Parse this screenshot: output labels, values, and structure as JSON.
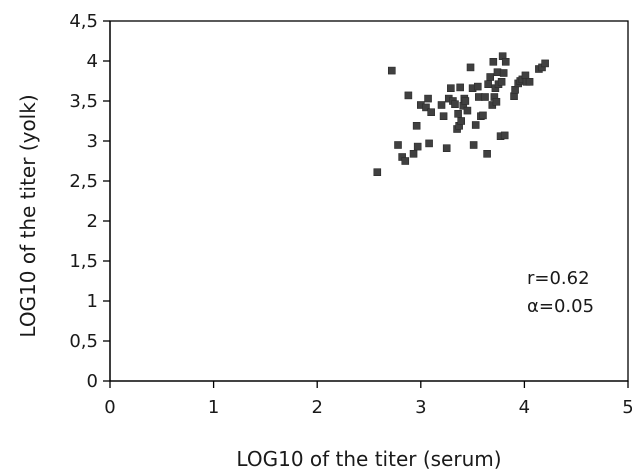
{
  "chart_data": {
    "type": "scatter",
    "title": "",
    "xlabel": "LOG10 of the titer (serum)",
    "ylabel": "LOG10 of the titer (yolk)",
    "xlim": [
      0,
      5
    ],
    "ylim": [
      0,
      4.5
    ],
    "x_ticks": [
      "0",
      "1",
      "2",
      "3",
      "4",
      "5"
    ],
    "y_ticks": [
      "0",
      "0,5",
      "1",
      "1,5",
      "2",
      "2,5",
      "3",
      "3,5",
      "4",
      "4,5"
    ],
    "grid": false,
    "legend": false,
    "annotation_r": "r=0.62",
    "annotation_alpha": "α=0.05",
    "series": [
      {
        "points": [
          [
            2.58,
            2.61
          ],
          [
            2.72,
            3.88
          ],
          [
            2.78,
            2.95
          ],
          [
            2.82,
            2.8
          ],
          [
            2.85,
            2.75
          ],
          [
            2.88,
            3.57
          ],
          [
            2.93,
            2.84
          ],
          [
            2.96,
            3.19
          ],
          [
            2.97,
            2.93
          ],
          [
            3.0,
            3.45
          ],
          [
            3.05,
            3.42
          ],
          [
            3.07,
            3.53
          ],
          [
            3.08,
            2.97
          ],
          [
            3.1,
            3.36
          ],
          [
            3.2,
            3.45
          ],
          [
            3.22,
            3.31
          ],
          [
            3.25,
            2.91
          ],
          [
            3.27,
            3.53
          ],
          [
            3.29,
            3.66
          ],
          [
            3.31,
            3.5
          ],
          [
            3.33,
            3.46
          ],
          [
            3.35,
            3.15
          ],
          [
            3.36,
            3.34
          ],
          [
            3.37,
            3.19
          ],
          [
            3.38,
            3.67
          ],
          [
            3.39,
            3.25
          ],
          [
            3.41,
            3.44
          ],
          [
            3.42,
            3.53
          ],
          [
            3.43,
            3.5
          ],
          [
            3.45,
            3.38
          ],
          [
            3.48,
            3.92
          ],
          [
            3.5,
            3.66
          ],
          [
            3.51,
            2.95
          ],
          [
            3.53,
            3.2
          ],
          [
            3.55,
            3.68
          ],
          [
            3.56,
            3.55
          ],
          [
            3.58,
            3.31
          ],
          [
            3.6,
            3.32
          ],
          [
            3.62,
            3.55
          ],
          [
            3.64,
            2.84
          ],
          [
            3.65,
            3.71
          ],
          [
            3.67,
            3.8
          ],
          [
            3.69,
            3.45
          ],
          [
            3.7,
            3.99
          ],
          [
            3.71,
            3.55
          ],
          [
            3.72,
            3.66
          ],
          [
            3.73,
            3.49
          ],
          [
            3.74,
            3.86
          ],
          [
            3.75,
            3.71
          ],
          [
            3.77,
            3.06
          ],
          [
            3.78,
            3.74
          ],
          [
            3.79,
            4.06
          ],
          [
            3.8,
            3.85
          ],
          [
            3.81,
            3.07
          ],
          [
            3.82,
            3.99
          ],
          [
            3.9,
            3.56
          ],
          [
            3.91,
            3.64
          ],
          [
            3.94,
            3.72
          ],
          [
            3.96,
            3.75
          ],
          [
            3.98,
            3.77
          ],
          [
            4.01,
            3.82
          ],
          [
            4.02,
            3.74
          ],
          [
            4.05,
            3.74
          ],
          [
            4.14,
            3.9
          ],
          [
            4.17,
            3.92
          ],
          [
            4.2,
            3.97
          ]
        ]
      }
    ]
  }
}
